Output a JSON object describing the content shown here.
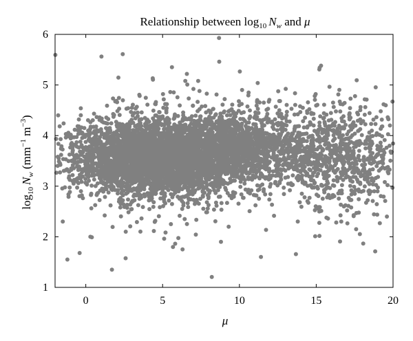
{
  "chart_data": {
    "type": "scatter",
    "title": {
      "prefix": "Relationship between log",
      "sub": "10",
      "var": "N",
      "var_sub": "w",
      "suffix": " and ",
      "mu": "μ"
    },
    "xlabel": "μ",
    "ylabel": {
      "prefix": "log",
      "sub": "10",
      "var": "N",
      "var_sub": "w",
      "units_open": " (mm",
      "sup1": "−1",
      "units_mid": " m",
      "sup2": "−3",
      "units_close": ")"
    },
    "xlim": [
      -2,
      20
    ],
    "ylim": [
      1,
      6
    ],
    "xticks": [
      0,
      5,
      10,
      15,
      20
    ],
    "yticks": [
      1,
      2,
      3,
      4,
      5,
      6
    ],
    "grid": false,
    "marker_color": "#808080",
    "marker": "filled-circle",
    "approx_point_count": 6000,
    "visible_points": [
      {
        "x": 1.7,
        "y": 1.35
      },
      {
        "x": -1.2,
        "y": 1.55
      },
      {
        "x": -0.4,
        "y": 1.68
      },
      {
        "x": 11.4,
        "y": 1.6
      },
      {
        "x": 6.3,
        "y": 1.75
      },
      {
        "x": 8.8,
        "y": 1.9
      },
      {
        "x": 7.4,
        "y": 4.88
      },
      {
        "x": 10.6,
        "y": 4.85
      },
      {
        "x": 5.5,
        "y": 4.86
      },
      {
        "x": 19.2,
        "y": 4.48
      },
      {
        "x": 17.6,
        "y": 2.15
      },
      {
        "x": 19.6,
        "y": 2.4
      },
      {
        "x": -1.8,
        "y": 4.4
      },
      {
        "x": 3.0,
        "y": 4.55
      },
      {
        "x": 12.6,
        "y": 4.5
      },
      {
        "x": 16.8,
        "y": 2.6
      },
      {
        "x": 18.4,
        "y": 2.9
      },
      {
        "x": 0.3,
        "y": 2.0
      },
      {
        "x": 2.6,
        "y": 2.1
      },
      {
        "x": 13.8,
        "y": 2.3
      },
      {
        "x": 15.2,
        "y": 2.5
      },
      {
        "x": 19.8,
        "y": 4.2
      },
      {
        "x": -1.5,
        "y": 2.3
      },
      {
        "x": 9.3,
        "y": 2.2
      }
    ],
    "clusters": [
      {
        "cx": 4.5,
        "cy": 3.55,
        "sx": 2.8,
        "sy": 0.38,
        "weight": 0.62
      },
      {
        "cx": 9.2,
        "cy": 3.8,
        "sx": 2.0,
        "sy": 0.3,
        "weight": 0.18
      },
      {
        "cx": 13.5,
        "cy": 3.7,
        "sx": 2.5,
        "sy": 0.42,
        "weight": 0.13
      },
      {
        "cx": 17.5,
        "cy": 3.55,
        "sx": 1.8,
        "sy": 0.5,
        "weight": 0.07
      }
    ]
  }
}
